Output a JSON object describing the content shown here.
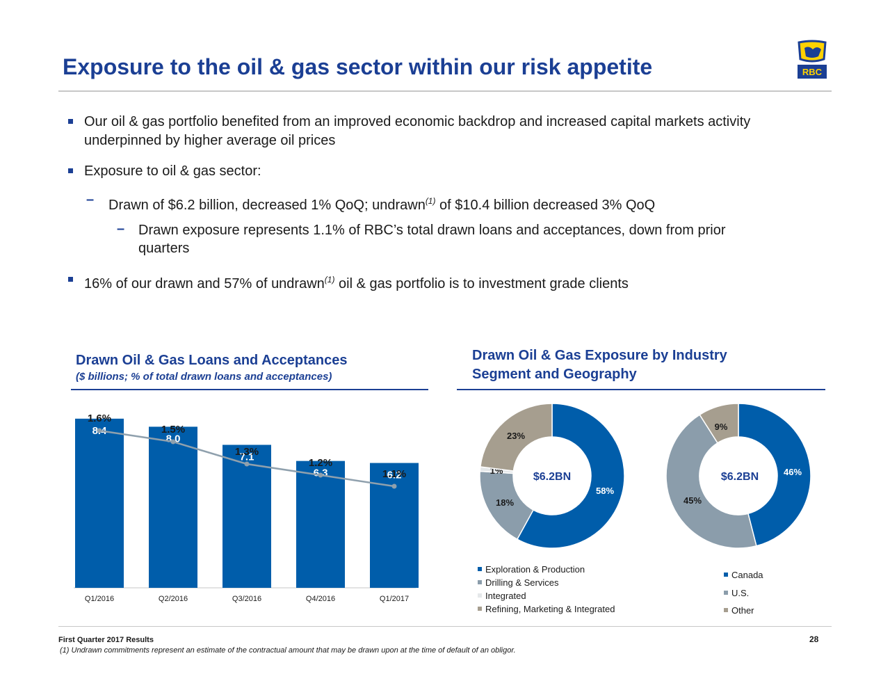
{
  "slide": {
    "title": "Exposure to the oil & gas sector within our risk appetite",
    "logo_text": "RBC",
    "footer_left": "First Quarter 2017 Results",
    "page_number": "28",
    "footnote": "(1) Undrawn commitments represent an estimate of the contractual amount that may be drawn upon at the time of default of an obligor."
  },
  "bullets": {
    "b1_line1": "Our oil & gas portfolio benefited from an improved economic backdrop and increased capital markets activity",
    "b1_line2": "underpinned by higher average oil prices",
    "b2": "Exposure to oil & gas sector:",
    "b3_pre": "Drawn of $6.2 billion, decreased 1% QoQ; undrawn",
    "b3_sup": "(1)",
    "b3_post": " of $10.4 billion decreased 3% QoQ",
    "b4_line1": "Drawn exposure represents 1.1% of RBC’s total drawn loans and acceptances, down from prior",
    "b4_line2": "quarters",
    "b5_pre": "16% of our drawn and 57% of undrawn",
    "b5_sup": "(1)",
    "b5_post": " oil & gas portfolio is to investment grade clients"
  },
  "left_chart": {
    "title": "Drawn Oil & Gas Loans and Acceptances",
    "subtitle": "($ billions; % of total drawn loans and acceptances)"
  },
  "right_charts": {
    "title_line1": "Drawn Oil & Gas Exposure by Industry",
    "title_line2": "Segment and Geography"
  },
  "colors": {
    "navy": "#1b3f94",
    "bar_blue": "#005daa",
    "slate": "#8b9dab",
    "taupe": "#a69e8f",
    "light": "#e5e8ea",
    "line_gray": "#8fa0ad"
  },
  "chart_data": [
    {
      "type": "bar",
      "categories": [
        "Q1/2016",
        "Q2/2016",
        "Q3/2016",
        "Q4/2016",
        "Q1/2017"
      ],
      "series": [
        {
          "values": [
            8.4,
            8.0,
            7.1,
            6.3,
            6.2
          ],
          "labels": [
            "8.4",
            "8.0",
            "7.1",
            "6.3",
            "6.2"
          ]
        }
      ],
      "line_series": {
        "values": [
          1.6,
          1.5,
          1.3,
          1.2,
          1.1
        ],
        "labels": [
          "1.6%",
          "1.5%",
          "1.3%",
          "1.2%",
          "1.1%"
        ]
      },
      "ylim": [
        0,
        9.5
      ],
      "line_ylim": [
        0,
        2.0
      ],
      "grid": false
    },
    {
      "type": "pie",
      "center_label": "$6.2BN",
      "slices": [
        {
          "label": "Exploration & Production",
          "value": 58,
          "text": "58%"
        },
        {
          "label": "Drilling & Services",
          "value": 18,
          "text": "18%"
        },
        {
          "label": "Integrated",
          "value": 1,
          "text": "1%"
        },
        {
          "label": "Refining, Marketing & Integrated",
          "value": 23,
          "text": "23%"
        }
      ]
    },
    {
      "type": "pie",
      "center_label": "$6.2BN",
      "slices": [
        {
          "label": "Canada",
          "value": 46,
          "text": "46%"
        },
        {
          "label": "U.S.",
          "value": 45,
          "text": "45%"
        },
        {
          "label": "Other",
          "value": 9,
          "text": "9%"
        }
      ]
    }
  ]
}
